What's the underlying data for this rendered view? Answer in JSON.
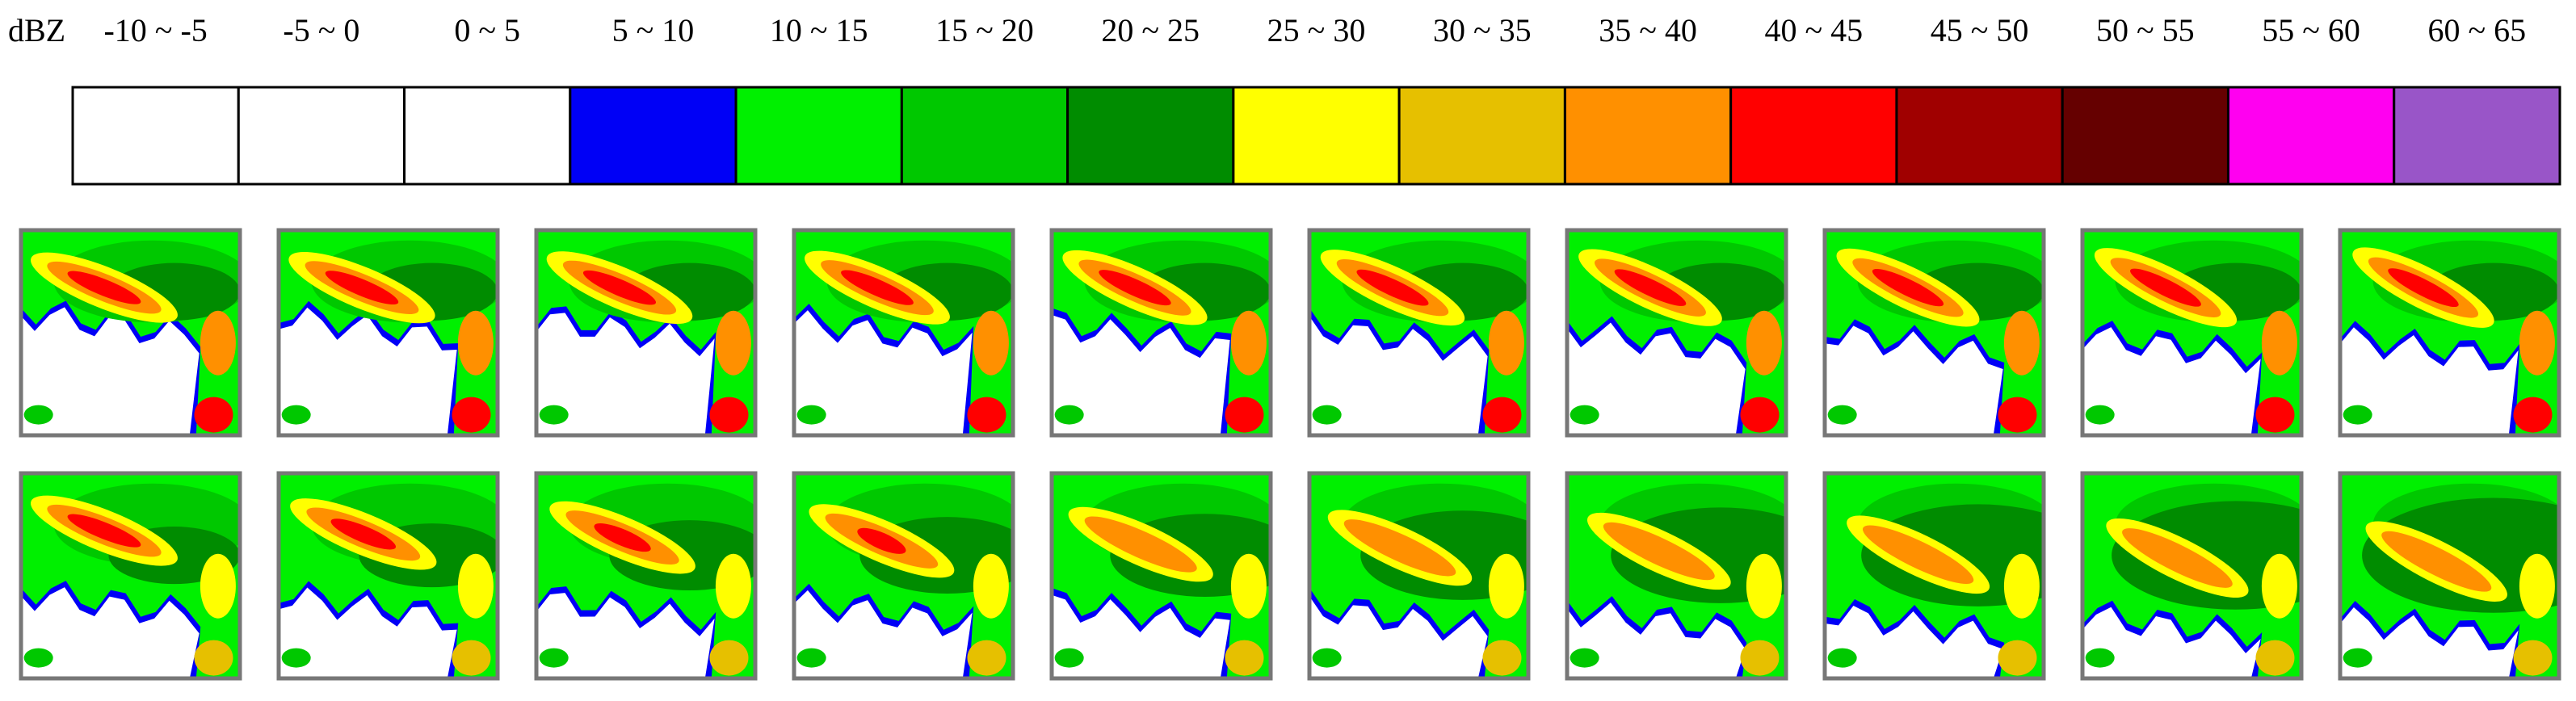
{
  "legend": {
    "unit": "dBZ",
    "bins": [
      {
        "label": "-10 ~ -5",
        "color": "#ffffff"
      },
      {
        "label": "-5 ~ 0",
        "color": "#ffffff"
      },
      {
        "label": "0 ~ 5",
        "color": "#ffffff"
      },
      {
        "label": "5 ~ 10",
        "color": "#0000f6"
      },
      {
        "label": "10 ~ 15",
        "color": "#00f000"
      },
      {
        "label": "15 ~ 20",
        "color": "#00c800"
      },
      {
        "label": "20 ~ 25",
        "color": "#008c00"
      },
      {
        "label": "25 ~ 30",
        "color": "#ffff00"
      },
      {
        "label": "30 ~ 35",
        "color": "#e6c000"
      },
      {
        "label": "35 ~ 40",
        "color": "#ff9000"
      },
      {
        "label": "40 ~ 45",
        "color": "#ff0000"
      },
      {
        "label": "45 ~ 50",
        "color": "#a00000"
      },
      {
        "label": "50 ~ 55",
        "color": "#650000"
      },
      {
        "label": "55 ~ 60",
        "color": "#ff00f0"
      },
      {
        "label": "60 ~ 65",
        "color": "#9955c8"
      }
    ]
  }
}
